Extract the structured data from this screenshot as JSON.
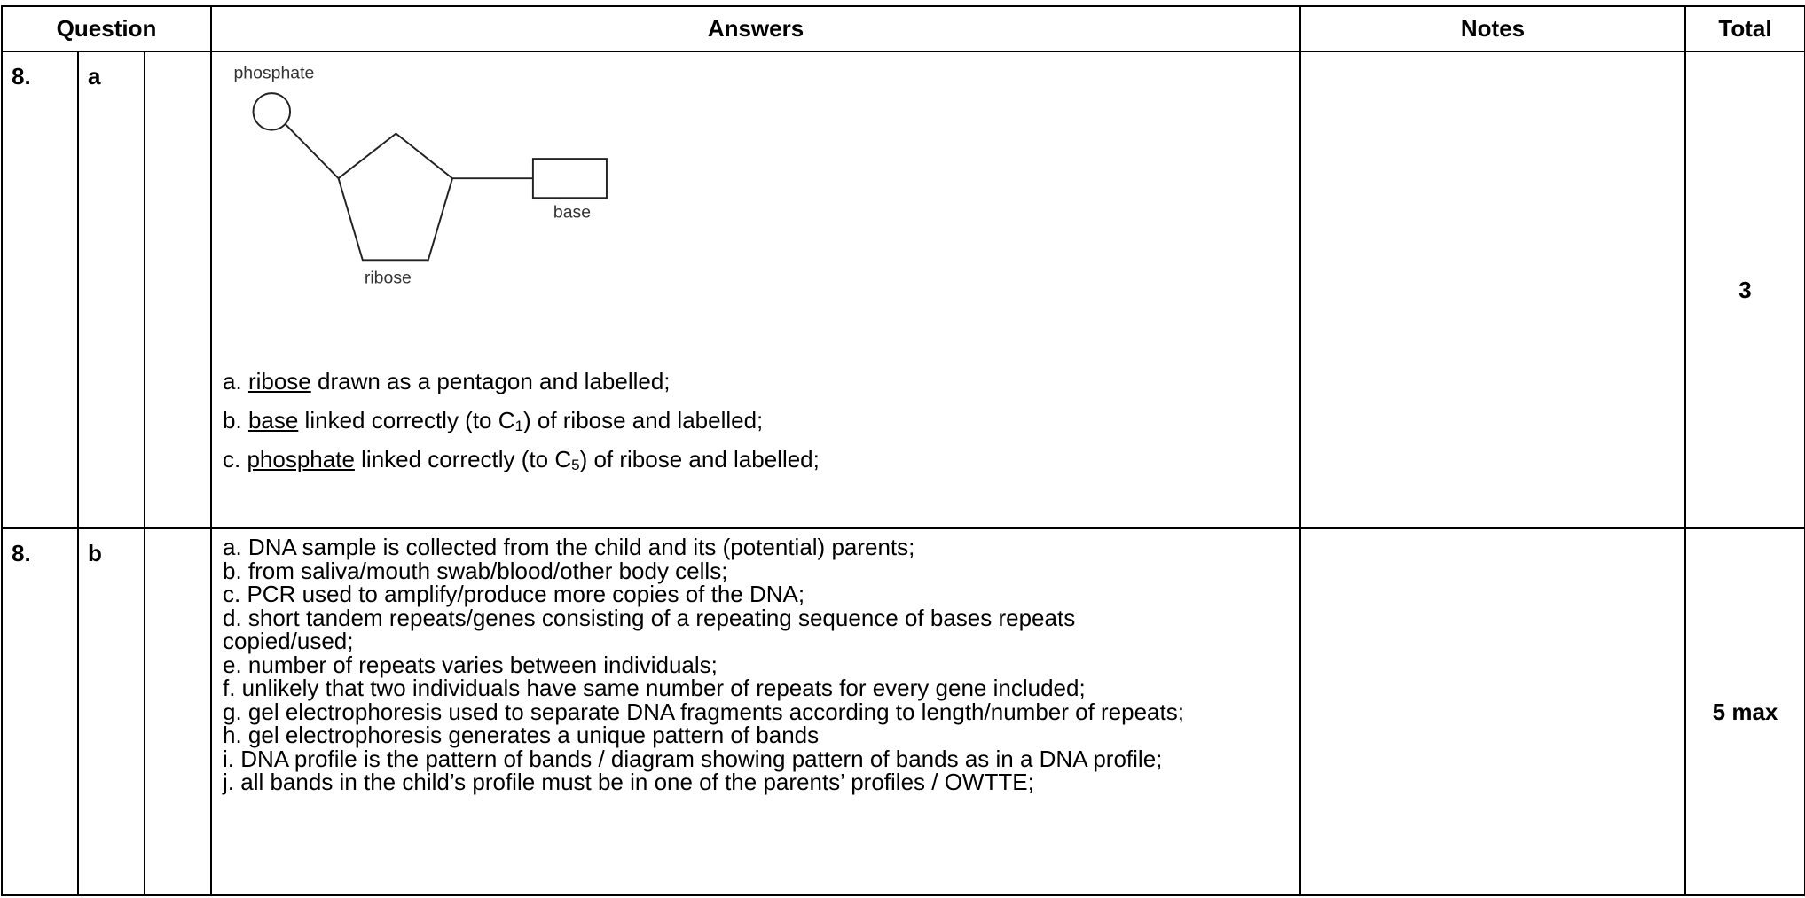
{
  "header": {
    "question": "Question",
    "answers": "Answers",
    "notes": "Notes",
    "total": "Total"
  },
  "rows": [
    {
      "number": "8.",
      "part": "a",
      "diagram": {
        "phosphate": "phosphate",
        "base": "base",
        "ribose": "ribose"
      },
      "answers": [
        {
          "prefix": "a. ",
          "term": "ribose",
          "rest": " drawn as a pentagon and labelled;"
        },
        {
          "prefix": "b. ",
          "term": "base",
          "rest": " linked correctly (to C",
          "sub": "1",
          "suffix": ") of ribose and labelled;"
        },
        {
          "prefix": "c. ",
          "term": "phosphate",
          "rest": " linked correctly (to C",
          "sub": "5",
          "suffix": ") of ribose and labelled;"
        }
      ],
      "total": "3"
    },
    {
      "number": "8.",
      "part": "b",
      "answers": [
        "a. DNA sample is collected from the child and its (potential) parents;",
        "b. from saliva/mouth swab/blood/other body cells;",
        "c. PCR used to amplify/produce more copies of the DNA;",
        "d. short tandem repeats/genes consisting of a repeating sequence of bases repeats copied/used;",
        "e. number of repeats varies between individuals;",
        "f.  unlikely that two individuals have same number of repeats for every gene included;",
        "g.  gel electrophoresis used to separate DNA fragments according to length/number of repeats;",
        "h. gel electrophoresis generates a unique pattern of bands",
        "i. DNA profile is the pattern of bands / diagram showing pattern of bands as in a DNA profile;",
        "j. all bands in the child’s profile must be in one of the parents’ profiles / OWTTE;"
      ],
      "total": "5 max"
    }
  ]
}
